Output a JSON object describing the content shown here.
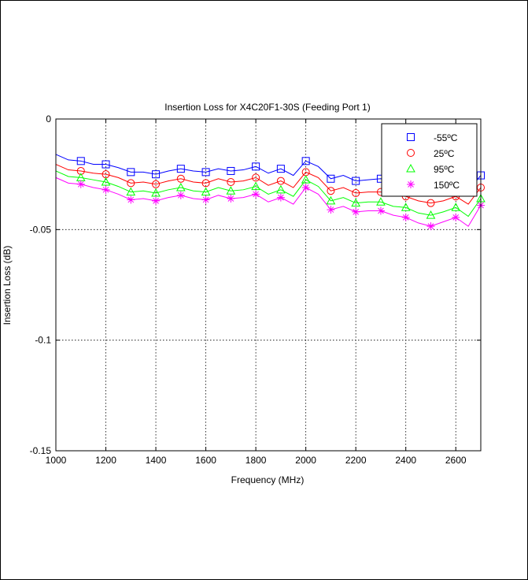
{
  "chart_data": {
    "type": "line",
    "title": "Insertion Loss for X4C20F1-30S (Feeding Port 1)",
    "xlabel": "Frequency (MHz)",
    "ylabel": "Insertion Loss (dB)",
    "xlim": [
      1000,
      2700
    ],
    "ylim": [
      -0.15,
      0
    ],
    "xticks": [
      1000,
      1200,
      1400,
      1600,
      1800,
      2000,
      2200,
      2400,
      2600
    ],
    "xtick_labels": [
      "1000",
      "1200",
      "1400",
      "1600",
      "1800",
      "2000",
      "2200",
      "2400",
      "2600"
    ],
    "yticks": [
      0,
      -0.05,
      -0.1,
      -0.15
    ],
    "ytick_labels": [
      "0",
      "-0.05",
      "-0.1",
      "-0.15"
    ],
    "grid": true,
    "legend_position": "top-right",
    "x": [
      1000,
      1050,
      1100,
      1150,
      1200,
      1250,
      1300,
      1350,
      1400,
      1450,
      1500,
      1550,
      1600,
      1650,
      1700,
      1750,
      1800,
      1850,
      1900,
      1950,
      2000,
      2050,
      2100,
      2150,
      2200,
      2250,
      2300,
      2350,
      2400,
      2450,
      2500,
      2550,
      2600,
      2650,
      2700
    ],
    "series": [
      {
        "name": "-55ºC",
        "color": "#0000ff",
        "marker": "square",
        "values": [
          -0.016,
          -0.0185,
          -0.019,
          -0.0205,
          -0.0205,
          -0.022,
          -0.024,
          -0.024,
          -0.025,
          -0.0235,
          -0.0225,
          -0.0235,
          -0.024,
          -0.0225,
          -0.0235,
          -0.023,
          -0.0215,
          -0.0245,
          -0.0225,
          -0.0255,
          -0.019,
          -0.0215,
          -0.027,
          -0.0255,
          -0.028,
          -0.0275,
          -0.027,
          -0.029,
          -0.029,
          -0.031,
          -0.032,
          -0.031,
          -0.0295,
          -0.0325,
          -0.0255
        ]
      },
      {
        "name": "25ºC",
        "color": "#ff0000",
        "marker": "circle",
        "values": [
          -0.0205,
          -0.023,
          -0.0235,
          -0.0245,
          -0.025,
          -0.0265,
          -0.029,
          -0.0285,
          -0.0295,
          -0.028,
          -0.027,
          -0.0285,
          -0.029,
          -0.027,
          -0.0285,
          -0.028,
          -0.0265,
          -0.03,
          -0.028,
          -0.031,
          -0.024,
          -0.0265,
          -0.0325,
          -0.031,
          -0.0335,
          -0.033,
          -0.033,
          -0.0345,
          -0.035,
          -0.037,
          -0.038,
          -0.037,
          -0.035,
          -0.0385,
          -0.031
        ]
      },
      {
        "name": "95ºC",
        "color": "#00ff00",
        "marker": "triangle",
        "values": [
          -0.0235,
          -0.026,
          -0.0265,
          -0.0275,
          -0.0285,
          -0.0305,
          -0.033,
          -0.0325,
          -0.0335,
          -0.032,
          -0.031,
          -0.0325,
          -0.033,
          -0.031,
          -0.0325,
          -0.032,
          -0.0305,
          -0.034,
          -0.032,
          -0.035,
          -0.0275,
          -0.0305,
          -0.037,
          -0.0355,
          -0.038,
          -0.0375,
          -0.0375,
          -0.0395,
          -0.04,
          -0.0425,
          -0.0435,
          -0.042,
          -0.04,
          -0.044,
          -0.036
        ]
      },
      {
        "name": "150ºC",
        "color": "#ff00ff",
        "marker": "star",
        "values": [
          -0.0265,
          -0.029,
          -0.0295,
          -0.031,
          -0.032,
          -0.034,
          -0.0365,
          -0.036,
          -0.037,
          -0.0355,
          -0.0345,
          -0.036,
          -0.0365,
          -0.0345,
          -0.036,
          -0.0355,
          -0.034,
          -0.0375,
          -0.0355,
          -0.0385,
          -0.031,
          -0.034,
          -0.041,
          -0.0395,
          -0.042,
          -0.0415,
          -0.0415,
          -0.0435,
          -0.0445,
          -0.047,
          -0.0485,
          -0.0465,
          -0.0445,
          -0.0485,
          -0.039
        ]
      }
    ]
  }
}
